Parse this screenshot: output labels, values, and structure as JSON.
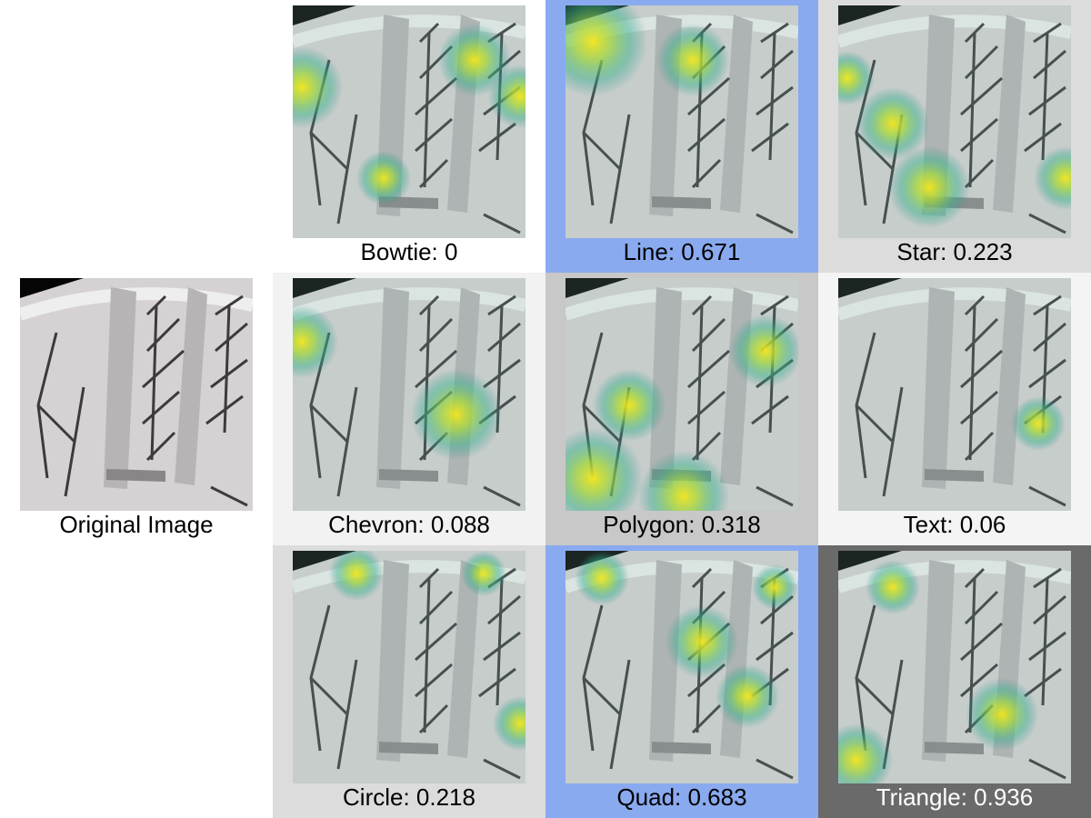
{
  "original": {
    "label": "Original Image"
  },
  "cells": [
    {
      "label": "Bowtie: 0",
      "background": "#ffffff",
      "text_color": "#000000"
    },
    {
      "label": "Line: 0.671",
      "background": "#8aaaf0",
      "text_color": "#000000"
    },
    {
      "label": "Star: 0.223",
      "background": "#dcdcdc",
      "text_color": "#000000"
    },
    {
      "label": "Chevron: 0.088",
      "background": "#f2f2f2",
      "text_color": "#000000"
    },
    {
      "label": "Polygon: 0.318",
      "background": "#c8c8c8",
      "text_color": "#000000"
    },
    {
      "label": "Text: 0.06",
      "background": "#f4f4f4",
      "text_color": "#000000"
    },
    {
      "label": "Circle: 0.218",
      "background": "#dcdcdc",
      "text_color": "#000000"
    },
    {
      "label": "Quad: 0.683",
      "background": "#8aaaf0",
      "text_color": "#000000"
    },
    {
      "label": "Triangle: 0.936",
      "background": "#6a6a6a",
      "text_color": "#ffffff"
    }
  ]
}
